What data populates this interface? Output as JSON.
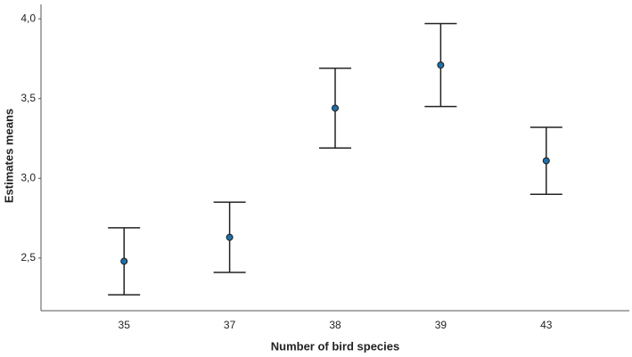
{
  "chart_data": {
    "type": "errorbar",
    "x_label": "Number of bird species",
    "y_label": "Estimates means",
    "categories": [
      "35",
      "37",
      "38",
      "39",
      "43"
    ],
    "values": [
      2.48,
      2.63,
      3.44,
      3.71,
      3.11
    ],
    "errors": [
      0.21,
      0.22,
      0.25,
      0.26,
      0.21
    ],
    "color": "#1f6fa8",
    "ylim": [
      2.17,
      4.09
    ],
    "yticks": [
      {
        "value": 2.5,
        "label": "2,5"
      },
      {
        "value": 3.0,
        "label": "3,0"
      },
      {
        "value": 3.5,
        "label": "3,5"
      },
      {
        "value": 4.0,
        "label": "4,0"
      }
    ]
  }
}
